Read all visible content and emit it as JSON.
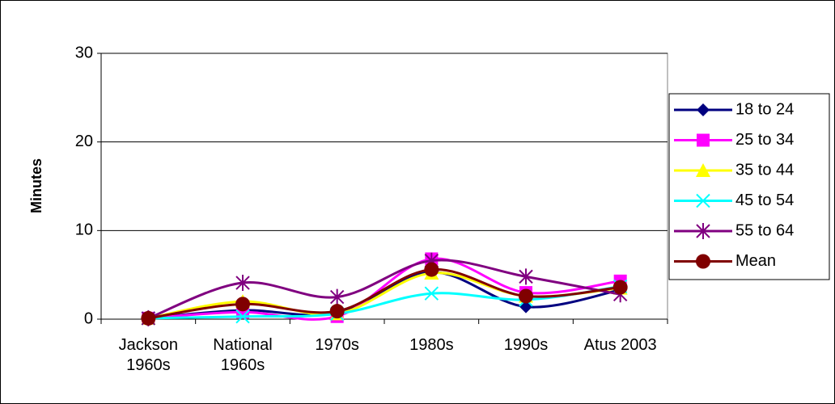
{
  "chart_data": {
    "type": "line",
    "smooth": true,
    "y_label": "Minutes",
    "categories": [
      "Jackson 1960s",
      "National 1960s",
      "1970s",
      "1980s",
      "1990s",
      "Atus 2003"
    ],
    "series": [
      {
        "name": "18 to 24",
        "color": "#000080",
        "marker": "diamond",
        "values": [
          0.1,
          1.0,
          0.7,
          5.3,
          1.4,
          3.3
        ]
      },
      {
        "name": "25 to 34",
        "color": "#ff00ff",
        "marker": "square",
        "values": [
          0.1,
          0.8,
          0.3,
          6.8,
          3.0,
          4.3
        ]
      },
      {
        "name": "35 to 44",
        "color": "#ffff00",
        "marker": "triangle",
        "values": [
          0.1,
          2.0,
          0.6,
          5.2,
          2.6,
          3.5
        ]
      },
      {
        "name": "45 to 54",
        "color": "#00ffff",
        "marker": "x",
        "values": [
          0.1,
          0.3,
          0.6,
          2.9,
          2.2,
          3.7
        ]
      },
      {
        "name": "55 to 64",
        "color": "#800080",
        "marker": "asterisk",
        "values": [
          0.1,
          4.1,
          2.5,
          6.6,
          4.8,
          2.8
        ]
      },
      {
        "name": "Mean",
        "color": "#800000",
        "marker": "circle",
        "values": [
          0.1,
          1.7,
          0.9,
          5.6,
          2.6,
          3.6
        ]
      }
    ],
    "ylim": [
      0,
      30
    ],
    "yticks": [
      0,
      10,
      20,
      30
    ],
    "grid": true,
    "legend": "right"
  }
}
